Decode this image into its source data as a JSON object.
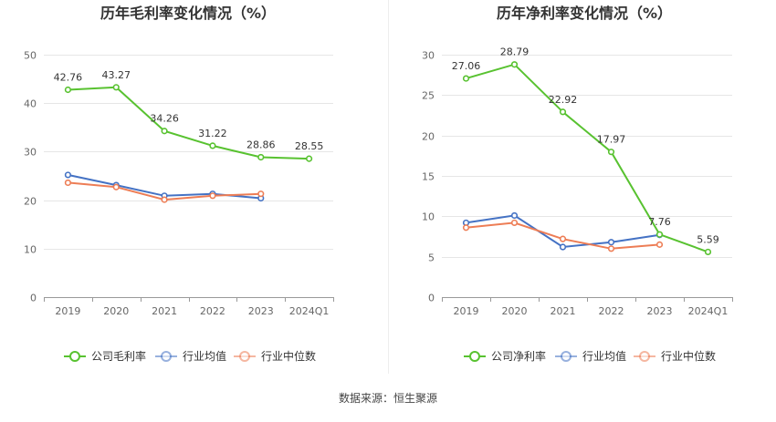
{
  "source": "数据来源：恒生聚源",
  "legend_labels": [
    "公司毛利率",
    "行业均值",
    "行业中位数",
    "公司净利率",
    "行业均值",
    "行业中位数"
  ],
  "chart_data": [
    {
      "type": "line",
      "title": "历年毛利率变化情况（%）",
      "categories": [
        "2019",
        "2020",
        "2021",
        "2022",
        "2023",
        "2024Q1"
      ],
      "ylim": [
        0,
        50
      ],
      "yticks": [
        "0",
        "10",
        "20",
        "30",
        "40",
        "50"
      ],
      "grid": true,
      "legend_position": "bottom",
      "series": [
        {
          "name": "公司毛利率",
          "color": "#58C230",
          "values": [
            42.76,
            43.27,
            34.26,
            31.22,
            28.86,
            28.55
          ],
          "labels": [
            "42.76",
            "43.27",
            "34.26",
            "31.22",
            "28.86",
            "28.55"
          ]
        },
        {
          "name": "行业均值",
          "color": "#4472C4",
          "values": [
            25.2,
            23.1,
            20.9,
            21.3,
            20.4,
            null
          ],
          "labels": []
        },
        {
          "name": "行业中位数",
          "color": "#ED7D55",
          "values": [
            23.6,
            22.7,
            20.1,
            20.9,
            21.3,
            null
          ],
          "labels": []
        }
      ]
    },
    {
      "type": "line",
      "title": "历年净利率变化情况（%）",
      "categories": [
        "2019",
        "2020",
        "2021",
        "2022",
        "2023",
        "2024Q1"
      ],
      "ylim": [
        0,
        30
      ],
      "yticks": [
        "0",
        "5",
        "10",
        "15",
        "20",
        "25",
        "30"
      ],
      "grid": true,
      "legend_position": "bottom",
      "series": [
        {
          "name": "公司净利率",
          "color": "#58C230",
          "values": [
            27.06,
            28.79,
            22.92,
            17.97,
            7.76,
            5.59
          ],
          "labels": [
            "27.06",
            "28.79",
            "22.92",
            "17.97",
            "7.76",
            "5.59"
          ]
        },
        {
          "name": "行业均值",
          "color": "#4472C4",
          "values": [
            9.2,
            10.1,
            6.2,
            6.8,
            7.7,
            null
          ],
          "labels": []
        },
        {
          "name": "行业中位数",
          "color": "#ED7D55",
          "values": [
            8.6,
            9.2,
            7.2,
            6.0,
            6.5,
            null
          ],
          "labels": []
        }
      ]
    }
  ]
}
